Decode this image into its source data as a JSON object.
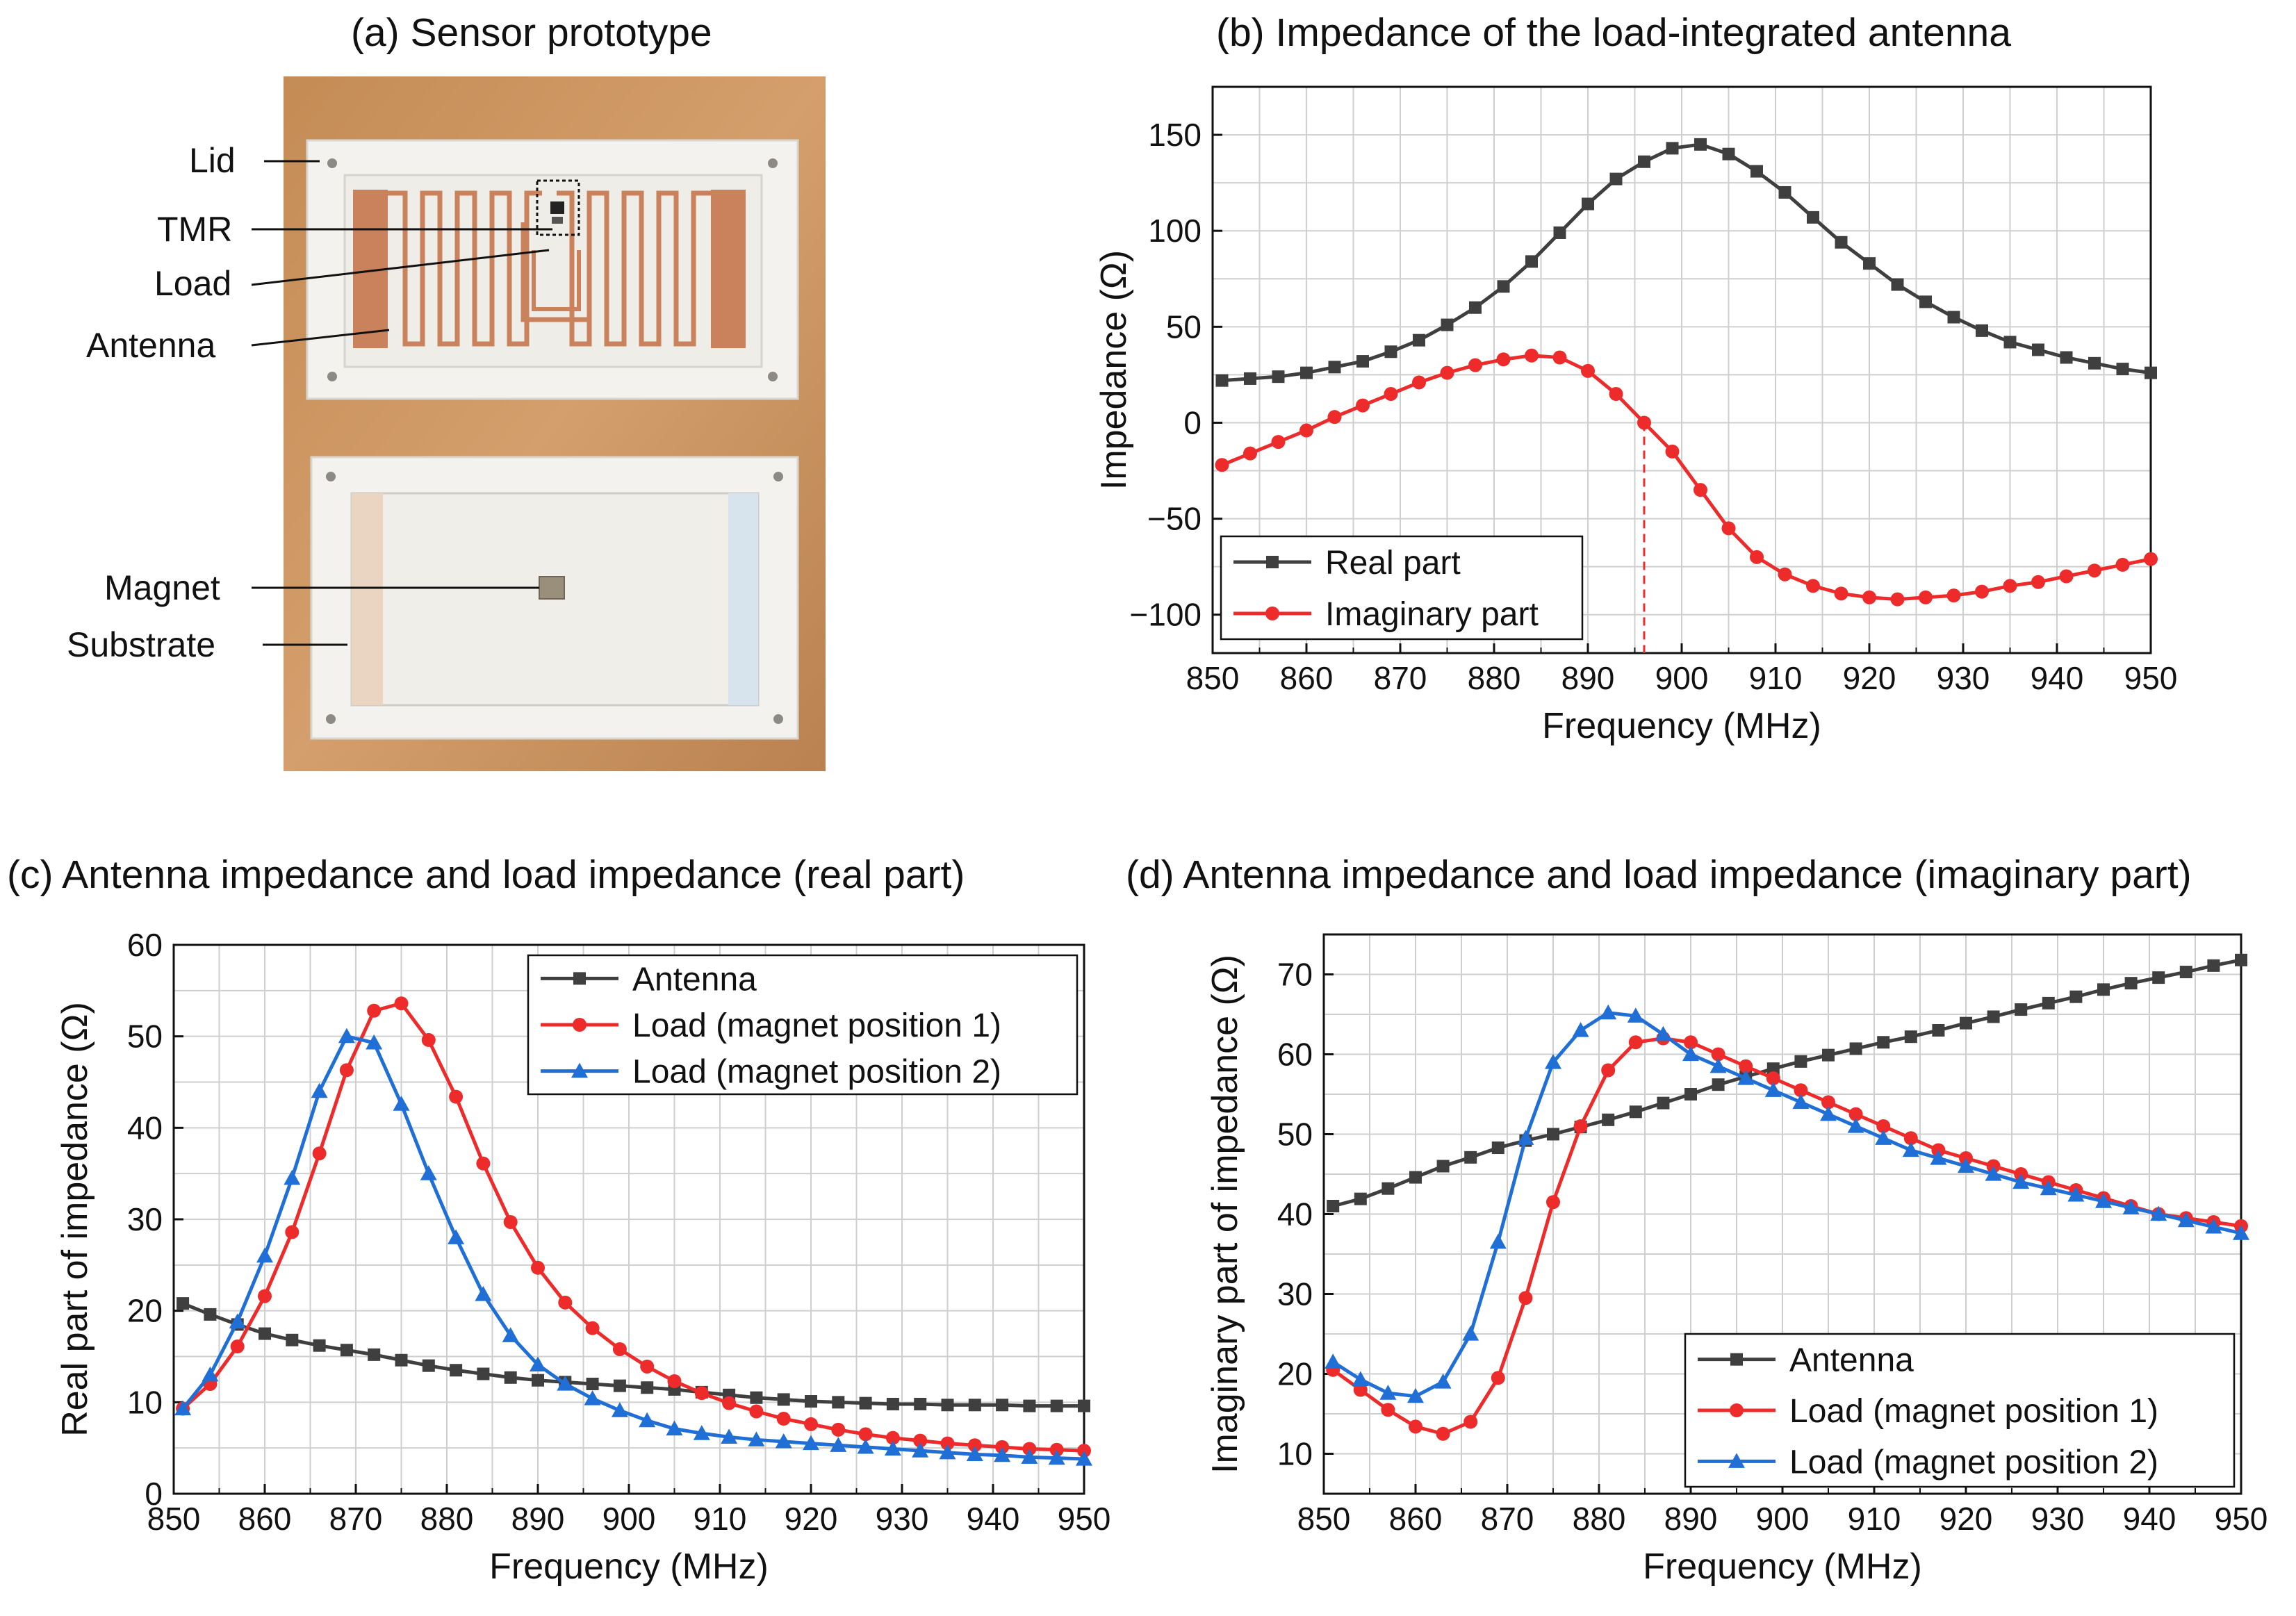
{
  "panels": {
    "a": {
      "title": "(a) Sensor prototype",
      "labels": [
        "Lid",
        "TMR",
        "Load",
        "Antenna",
        "Magnet",
        "Substrate"
      ]
    }
  },
  "colors": {
    "antenna": "#3f3f3f",
    "load1": "#ee2b2b",
    "load2": "#1f6fd6",
    "real": "#3f3f3f",
    "imag": "#ee2b2b",
    "wood": "#c9935e",
    "board": "#f2f2ef",
    "copper": "#c9825c"
  },
  "chart_data": [
    {
      "id": "b",
      "type": "line",
      "title": "(b) Impedance of the load-integrated antenna",
      "xlabel": "Frequency (MHz)",
      "ylabel": "Impedance (Ω)",
      "xlim": [
        850,
        950
      ],
      "ylim": [
        -120,
        175
      ],
      "xticks": [
        850,
        860,
        870,
        880,
        890,
        900,
        910,
        920,
        930,
        940,
        950
      ],
      "yticks": [
        -100,
        -50,
        0,
        50,
        100,
        150
      ],
      "grid": true,
      "legend_position": "bottom-left",
      "annotation": {
        "type": "vertical-dashed-line",
        "x": 896,
        "from": -125,
        "to": 0
      },
      "series": [
        {
          "name": "Real part",
          "marker": "square",
          "color": "#3f3f3f",
          "x": [
            851,
            854,
            857,
            860,
            863,
            866,
            869,
            872,
            875,
            878,
            881,
            884,
            887,
            890,
            893,
            896,
            899,
            902,
            905,
            908,
            911,
            914,
            917,
            920,
            923,
            926,
            929,
            932,
            935,
            938,
            941,
            944,
            947,
            950
          ],
          "y": [
            22,
            23,
            24,
            26,
            29,
            32,
            37,
            43,
            51,
            60,
            71,
            84,
            99,
            114,
            127,
            136,
            143,
            145,
            140,
            131,
            120,
            107,
            94,
            83,
            72,
            63,
            55,
            48,
            42,
            38,
            34,
            31,
            28,
            26
          ]
        },
        {
          "name": "Imaginary part",
          "marker": "circle",
          "color": "#ee2b2b",
          "x": [
            851,
            854,
            857,
            860,
            863,
            866,
            869,
            872,
            875,
            878,
            881,
            884,
            887,
            890,
            893,
            896,
            899,
            902,
            905,
            908,
            911,
            914,
            917,
            920,
            923,
            926,
            929,
            932,
            935,
            938,
            941,
            944,
            947,
            950
          ],
          "y": [
            -22,
            -16,
            -10,
            -4,
            3,
            9,
            15,
            21,
            26,
            30,
            33,
            35,
            34,
            27,
            15,
            0,
            -15,
            -35,
            -55,
            -70,
            -79,
            -85,
            -89,
            -91,
            -92,
            -91,
            -90,
            -88,
            -85,
            -83,
            -80,
            -77,
            -74,
            -71
          ]
        }
      ]
    },
    {
      "id": "c",
      "type": "line",
      "title": "(c) Antenna impedance and load impedance (real part)",
      "xlabel": "Frequency (MHz)",
      "ylabel": "Real part of impedance (Ω)",
      "xlim": [
        850,
        950
      ],
      "ylim": [
        0,
        60
      ],
      "xticks": [
        850,
        860,
        870,
        880,
        890,
        900,
        910,
        920,
        930,
        940,
        950
      ],
      "yticks": [
        0,
        10,
        20,
        30,
        40,
        50,
        60
      ],
      "grid": true,
      "legend_position": "top-right",
      "series": [
        {
          "name": "Antenna",
          "marker": "square",
          "color": "#3f3f3f",
          "x": [
            851,
            854,
            857,
            860,
            863,
            866,
            869,
            872,
            875,
            878,
            881,
            884,
            887,
            890,
            893,
            896,
            899,
            902,
            905,
            908,
            911,
            914,
            917,
            920,
            923,
            926,
            929,
            932,
            935,
            938,
            941,
            944,
            947,
            950
          ],
          "y": [
            20.8,
            19.6,
            18.5,
            17.5,
            16.8,
            16.2,
            15.7,
            15.2,
            14.6,
            14.0,
            13.5,
            13.1,
            12.7,
            12.4,
            12.2,
            12.0,
            11.8,
            11.6,
            11.4,
            11.1,
            10.8,
            10.5,
            10.3,
            10.1,
            10.0,
            9.9,
            9.8,
            9.8,
            9.7,
            9.7,
            9.7,
            9.6,
            9.6,
            9.6
          ]
        },
        {
          "name": "Load (magnet position 1)",
          "marker": "circle",
          "color": "#ee2b2b",
          "x": [
            851,
            854,
            857,
            860,
            863,
            866,
            869,
            872,
            875,
            878,
            881,
            884,
            887,
            890,
            893,
            896,
            899,
            902,
            905,
            908,
            911,
            914,
            917,
            920,
            923,
            926,
            929,
            932,
            935,
            938,
            941,
            944,
            947,
            950
          ],
          "y": [
            9.3,
            12.0,
            16.1,
            21.6,
            28.6,
            37.2,
            46.3,
            52.8,
            53.6,
            49.6,
            43.4,
            36.1,
            29.7,
            24.7,
            20.9,
            18.1,
            15.8,
            13.9,
            12.3,
            11.0,
            9.9,
            9.0,
            8.2,
            7.6,
            7.0,
            6.5,
            6.1,
            5.8,
            5.5,
            5.3,
            5.1,
            4.9,
            4.8,
            4.7
          ]
        },
        {
          "name": "Load (magnet position 2)",
          "marker": "triangle",
          "color": "#1f6fd6",
          "x": [
            851,
            854,
            857,
            860,
            863,
            866,
            869,
            872,
            875,
            878,
            881,
            884,
            887,
            890,
            893,
            896,
            899,
            902,
            905,
            908,
            911,
            914,
            917,
            920,
            923,
            926,
            929,
            932,
            935,
            938,
            941,
            944,
            947,
            950
          ],
          "y": [
            9.3,
            13.0,
            18.8,
            26.0,
            34.5,
            44.0,
            50.0,
            49.3,
            42.6,
            35.0,
            28.0,
            21.8,
            17.3,
            14.1,
            12.0,
            10.4,
            9.1,
            8.0,
            7.1,
            6.6,
            6.2,
            5.9,
            5.7,
            5.5,
            5.3,
            5.1,
            4.9,
            4.7,
            4.5,
            4.3,
            4.2,
            4.0,
            3.9,
            3.8
          ]
        }
      ]
    },
    {
      "id": "d",
      "type": "line",
      "title": "(d) Antenna impedance and load impedance (imaginary part)",
      "xlabel": "Frequency (MHz)",
      "ylabel": "Imaginary part of impedance (Ω)",
      "xlim": [
        850,
        950
      ],
      "ylim": [
        5,
        75
      ],
      "xticks": [
        850,
        860,
        870,
        880,
        890,
        900,
        910,
        920,
        930,
        940,
        950
      ],
      "yticks": [
        10,
        20,
        30,
        40,
        50,
        60,
        70
      ],
      "grid": true,
      "legend_position": "bottom-right",
      "series": [
        {
          "name": "Antenna",
          "marker": "square",
          "color": "#3f3f3f",
          "x": [
            851,
            854,
            857,
            860,
            863,
            866,
            869,
            872,
            875,
            878,
            881,
            884,
            887,
            890,
            893,
            896,
            899,
            902,
            905,
            908,
            911,
            914,
            917,
            920,
            923,
            926,
            929,
            932,
            935,
            938,
            941,
            944,
            947,
            950
          ],
          "y": [
            41.0,
            41.9,
            43.2,
            44.6,
            46.0,
            47.1,
            48.3,
            49.2,
            50.0,
            50.9,
            51.8,
            52.8,
            53.9,
            55.0,
            56.2,
            57.2,
            58.2,
            59.1,
            59.9,
            60.7,
            61.5,
            62.2,
            63.0,
            63.9,
            64.7,
            65.6,
            66.4,
            67.2,
            68.1,
            68.9,
            69.6,
            70.3,
            71.1,
            71.8
          ]
        },
        {
          "name": "Load (magnet position 1)",
          "marker": "circle",
          "color": "#ee2b2b",
          "x": [
            851,
            854,
            857,
            860,
            863,
            866,
            869,
            872,
            875,
            878,
            881,
            884,
            887,
            890,
            893,
            896,
            899,
            902,
            905,
            908,
            911,
            914,
            917,
            920,
            923,
            926,
            929,
            932,
            935,
            938,
            941,
            944,
            947,
            950
          ],
          "y": [
            20.5,
            18.0,
            15.5,
            13.4,
            12.5,
            14.0,
            19.5,
            29.5,
            41.5,
            51.0,
            58.0,
            61.5,
            62.0,
            61.5,
            60.0,
            58.5,
            57.0,
            55.5,
            54.0,
            52.5,
            51.0,
            49.5,
            48.0,
            47.0,
            46.0,
            45.0,
            44.0,
            43.0,
            42.0,
            41.0,
            40.0,
            39.5,
            39.0,
            38.5
          ]
        },
        {
          "name": "Load (magnet position 2)",
          "marker": "triangle",
          "color": "#1f6fd6",
          "x": [
            851,
            854,
            857,
            860,
            863,
            866,
            869,
            872,
            875,
            878,
            881,
            884,
            887,
            890,
            893,
            896,
            899,
            902,
            905,
            908,
            911,
            914,
            917,
            920,
            923,
            926,
            929,
            932,
            935,
            938,
            941,
            944,
            947,
            950
          ],
          "y": [
            21.5,
            19.3,
            17.6,
            17.2,
            19.0,
            25.0,
            36.5,
            49.5,
            59.0,
            63.0,
            65.2,
            64.8,
            62.5,
            60.0,
            58.5,
            57.0,
            55.5,
            54.0,
            52.5,
            51.0,
            49.5,
            48.0,
            47.0,
            46.0,
            45.0,
            44.0,
            43.2,
            42.4,
            41.6,
            40.8,
            40.0,
            39.2,
            38.4,
            37.6
          ]
        }
      ]
    }
  ]
}
